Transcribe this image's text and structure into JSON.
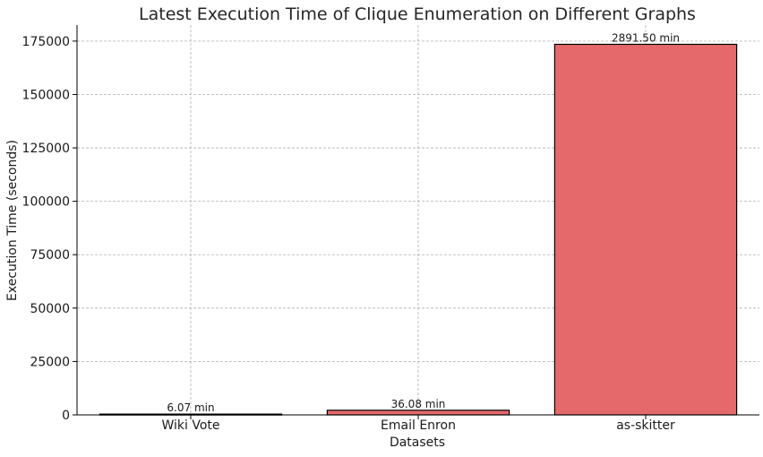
{
  "chart_data": {
    "type": "bar",
    "title": "Latest Execution Time of Clique Enumeration on Different Graphs",
    "xlabel": "Datasets",
    "ylabel": "Execution Time (seconds)",
    "categories": [
      "Wiki Vote",
      "Email Enron",
      "as-skitter"
    ],
    "values": [
      364.2,
      2164.8,
      173490
    ],
    "data_labels": [
      "6.07 min",
      "36.08 min",
      "2891.50 min"
    ],
    "ylim": [
      0,
      182500
    ],
    "yticks": [
      0,
      25000,
      50000,
      75000,
      100000,
      125000,
      150000,
      175000
    ],
    "grid": true,
    "bar_color": "#e5696b",
    "edge_color": "#000000"
  }
}
